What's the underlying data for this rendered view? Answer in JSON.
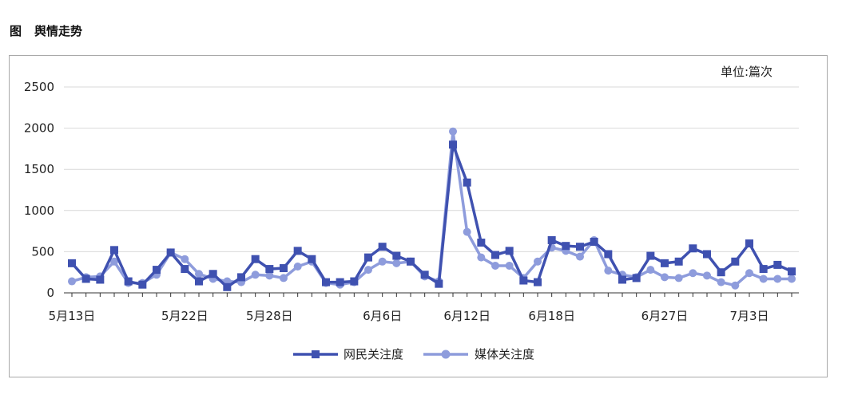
{
  "caption": {
    "label": "图",
    "title": "舆情走势"
  },
  "chart_data": {
    "type": "line",
    "unit_label": "单位:篇次",
    "ylim": [
      0,
      2500
    ],
    "yticks": [
      0,
      500,
      1000,
      1500,
      2000,
      2500
    ],
    "grid": true,
    "legend_position": "bottom",
    "x_tick_labels": [
      "5月13日",
      "5月22日",
      "5月28日",
      "6月6日",
      "6月12日",
      "6月18日",
      "6月27日",
      "7月3日"
    ],
    "x_tick_index": [
      0,
      8,
      14,
      22,
      28,
      34,
      42,
      48
    ],
    "series": [
      {
        "name": "网民关注度",
        "color": "#3f51b0",
        "marker": "square",
        "values": [
          360,
          170,
          160,
          520,
          140,
          100,
          280,
          490,
          290,
          140,
          230,
          70,
          190,
          410,
          290,
          300,
          510,
          410,
          130,
          130,
          140,
          430,
          560,
          450,
          380,
          220,
          110,
          1800,
          1340,
          610,
          460,
          510,
          150,
          130,
          640,
          570,
          560,
          620,
          470,
          160,
          180,
          450,
          360,
          380,
          540,
          470,
          250,
          380,
          600,
          290,
          340,
          260
        ]
      },
      {
        "name": "媒体关注度",
        "color": "#8e9cdc",
        "marker": "circle",
        "values": [
          140,
          190,
          200,
          380,
          120,
          120,
          220,
          490,
          410,
          230,
          170,
          140,
          130,
          220,
          210,
          180,
          320,
          380,
          120,
          100,
          130,
          280,
          380,
          360,
          380,
          200,
          140,
          1960,
          740,
          430,
          330,
          330,
          180,
          380,
          550,
          510,
          440,
          640,
          270,
          220,
          190,
          280,
          190,
          180,
          240,
          210,
          130,
          90,
          240,
          170,
          170,
          170
        ]
      }
    ]
  }
}
